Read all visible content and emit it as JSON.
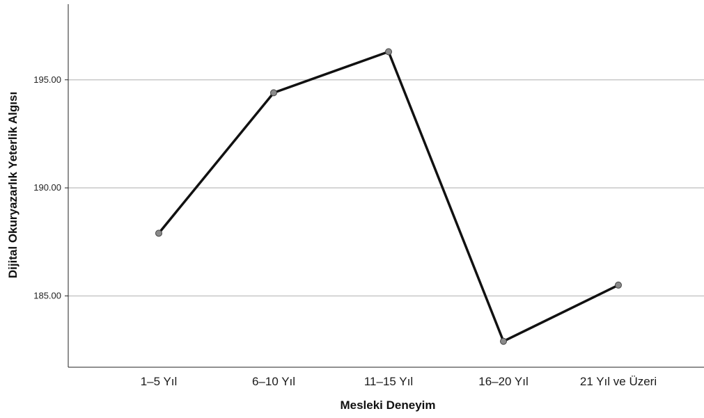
{
  "chart_data": {
    "type": "line",
    "title": "",
    "xlabel": "Mesleki Deneyim",
    "ylabel": "Dijital Okuryazarlık Yeterlik Algısı",
    "categories": [
      "1–5 Yıl",
      "6–10 Yıl",
      "11–15 Yıl",
      "16–20 Yıl",
      "21 Yıl ve Üzeri"
    ],
    "series": [
      {
        "values": [
          187.9,
          194.4,
          196.3,
          182.9,
          185.5
        ]
      }
    ],
    "yticks": [
      {
        "value": 185,
        "label": "185.00"
      },
      {
        "value": 190,
        "label": "190.00"
      },
      {
        "value": 195,
        "label": "195.00"
      }
    ],
    "ylim": [
      181.7,
      198.5
    ],
    "grid": "horizontal",
    "line_color": "#111111",
    "marker_color": "#8a8a8a",
    "gridline_color": "#c8c8c8"
  }
}
